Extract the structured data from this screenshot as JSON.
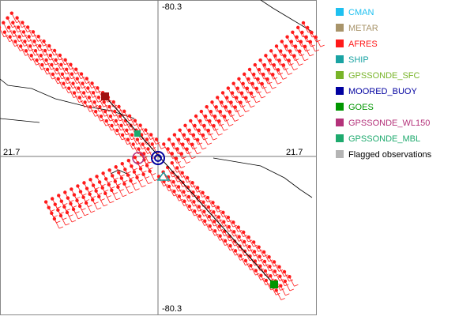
{
  "plot": {
    "top_label": "-80.3",
    "bottom_label": "-80.3",
    "left_label": "21.7",
    "right_label": "21.7"
  },
  "legend": [
    {
      "name": "CMAN",
      "color": "#1ec0f0",
      "label_color": "#1ec0f0"
    },
    {
      "name": "METAR",
      "color": "#a8946a",
      "label_color": "#a8946a"
    },
    {
      "name": "AFRES",
      "color": "#ff1a1a",
      "label_color": "#ff1a1a"
    },
    {
      "name": "SHIP",
      "color": "#1aa3a3",
      "label_color": "#1aa3a3"
    },
    {
      "name": "GPSSONDE_SFC",
      "color": "#78b428",
      "label_color": "#78b428"
    },
    {
      "name": "MOORED_BUOY",
      "color": "#0000a0",
      "label_color": "#0000a0"
    },
    {
      "name": "GOES",
      "color": "#009600",
      "label_color": "#009600"
    },
    {
      "name": "GPSSONDE_WL150",
      "color": "#b4327a",
      "label_color": "#b4327a"
    },
    {
      "name": "GPSSONDE_MBL",
      "color": "#1eaa6e",
      "label_color": "#1eaa6e"
    },
    {
      "name": "Flagged observations",
      "color": "#b4b4b4",
      "label_color": "#000000"
    }
  ]
}
